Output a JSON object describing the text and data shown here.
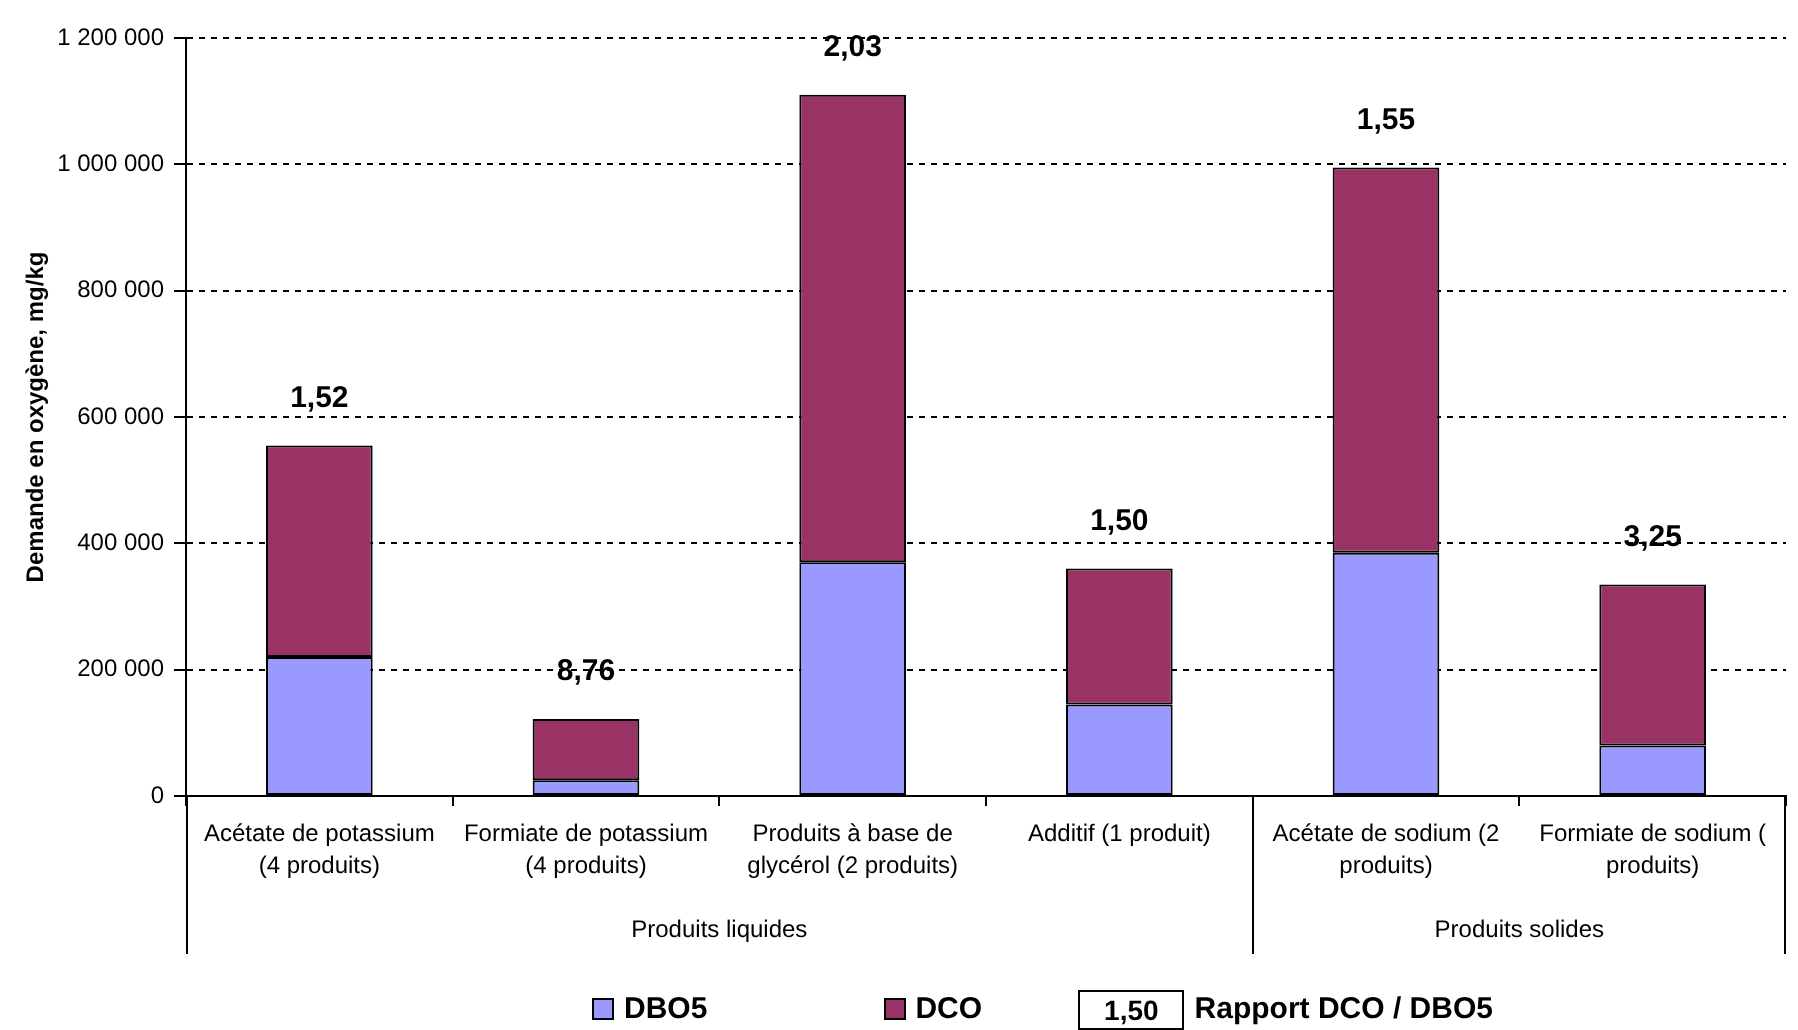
{
  "chart_data": {
    "type": "bar",
    "stacked": true,
    "ylabel": "Demande en oxygène, mg/kg",
    "categories": [
      "Acétate de potassium (4 produits)",
      "Formiate de potassium (4 produits)",
      "Produits à base de glycérol (2 produits)",
      "Additif (1 produit)",
      "Acétate de sodium (2 produits)",
      "Formiate de sodium ( produits)"
    ],
    "series": [
      {
        "name": "DBO5",
        "color": "#9999ff",
        "values": [
          220000,
          25000,
          370000,
          145000,
          385000,
          80000
        ]
      },
      {
        "name": "DCO",
        "color": "#993366",
        "values": [
          335000,
          97000,
          740000,
          215000,
          610000,
          255000
        ]
      }
    ],
    "ylim": [
      0,
      1200000
    ],
    "yticks": [
      0,
      {
        "value": 200000,
        "label": "200 000"
      },
      {
        "value": 400000,
        "label": "400 000"
      },
      {
        "value": 600000,
        "label": "600 000"
      },
      {
        "value": 800000,
        "label": "800 000"
      },
      {
        "value": 1000000,
        "label": "1 000 000"
      },
      {
        "value": 1200000,
        "label": "1 200 000"
      }
    ],
    "grid": "y",
    "legend": "bottom",
    "annotations": [
      {
        "text": "1,52",
        "x": "Acétate de potassium (4 produits)",
        "y": 555000
      },
      {
        "text": "8,76",
        "x": "Formiate de potassium (4 produits)",
        "y": 122000
      },
      {
        "text": "2,03",
        "x": "Produits à base de glycérol (2 produits)",
        "y": 1110000
      },
      {
        "text": "1,50",
        "x": "Additif (1 produit)",
        "y": 360000
      },
      {
        "text": "1,55",
        "x": "Acétate de sodium (2 produits)",
        "y": 995000
      },
      {
        "text": "3,25",
        "x": "Formiate de sodium ( produits)",
        "y": 335000
      },
      "Produits liquides",
      "Produits solides",
      "1,50",
      "Rapport DCO / DBO5"
    ]
  }
}
